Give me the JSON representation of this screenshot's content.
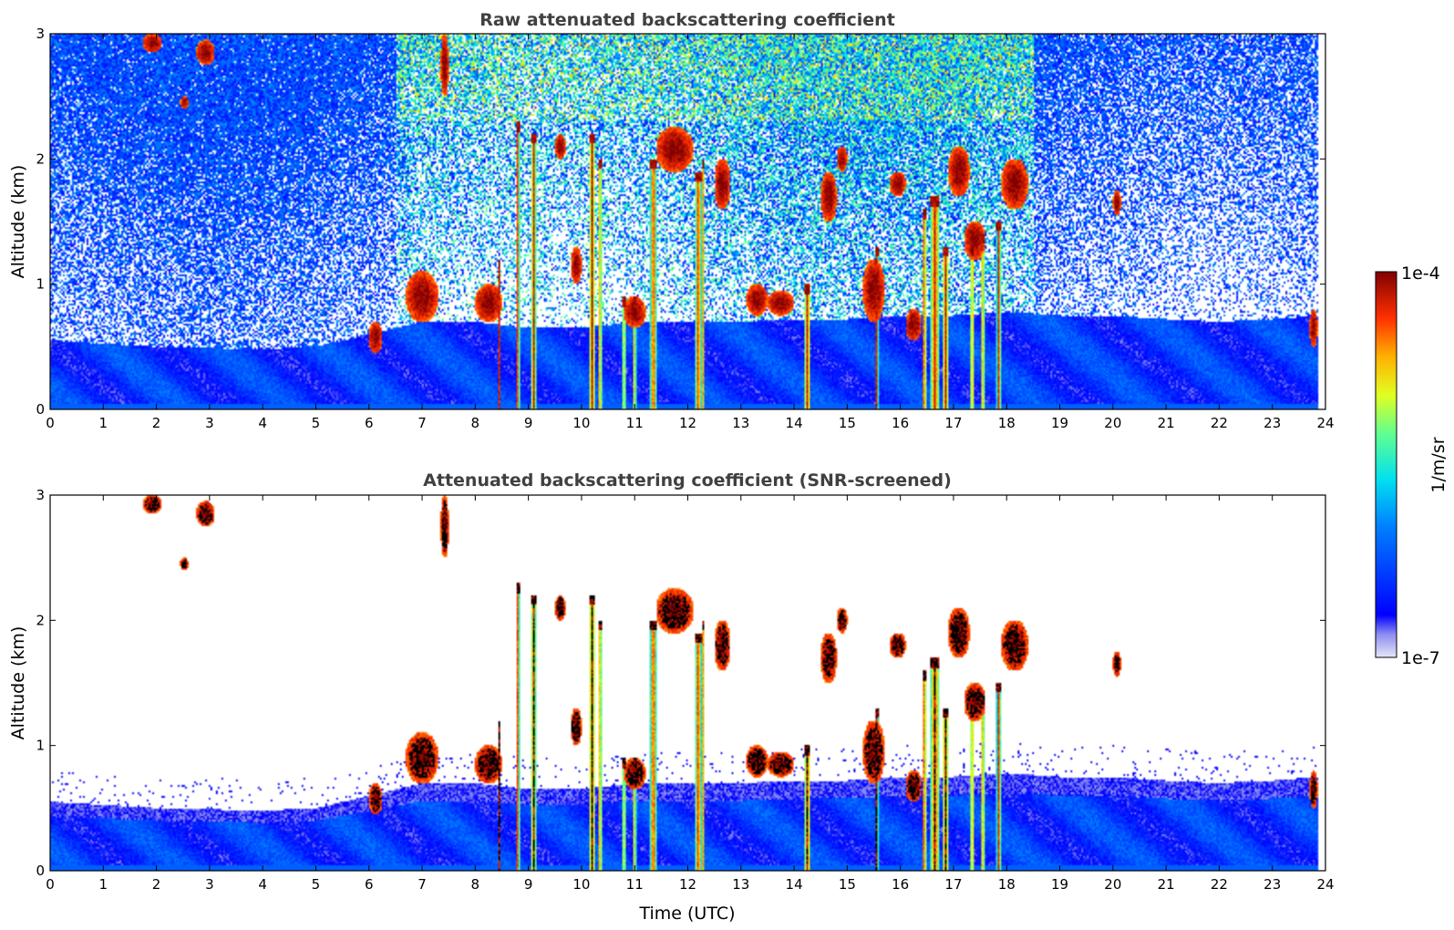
{
  "chart_data": [
    {
      "type": "heatmap",
      "title": "Raw attenuated backscattering coefficient",
      "xlabel": "",
      "ylabel": "Altitude (km)",
      "xlim": [
        0,
        24
      ],
      "ylim": [
        0,
        3
      ],
      "xticks": [
        0,
        1,
        2,
        3,
        4,
        5,
        6,
        7,
        8,
        9,
        10,
        11,
        12,
        13,
        14,
        15,
        16,
        17,
        18,
        19,
        20,
        21,
        22,
        23,
        24
      ],
      "yticks": [
        0,
        1,
        2,
        3
      ],
      "screening": "raw",
      "grid": false
    },
    {
      "type": "heatmap",
      "title": "Attenuated backscattering coefficient (SNR-screened)",
      "xlabel": "Time (UTC)",
      "ylabel": "Altitude (km)",
      "xlim": [
        0,
        24
      ],
      "ylim": [
        0,
        3
      ],
      "xticks": [
        0,
        1,
        2,
        3,
        4,
        5,
        6,
        7,
        8,
        9,
        10,
        11,
        12,
        13,
        14,
        15,
        16,
        17,
        18,
        19,
        20,
        21,
        22,
        23,
        24
      ],
      "yticks": [
        0,
        1,
        2,
        3
      ],
      "screening": "snr",
      "grid": false
    }
  ],
  "colorbar": {
    "label": "1/m/sr",
    "max_label": "1e-4",
    "min_label": "1e-7",
    "scale": "log",
    "range": [
      1e-07,
      0.0001
    ],
    "colormap": "jet"
  },
  "features": {
    "boundary_layer_top_km": [
      [
        0,
        0.55
      ],
      [
        2,
        0.5
      ],
      [
        4,
        0.48
      ],
      [
        5,
        0.5
      ],
      [
        6,
        0.6
      ],
      [
        7,
        0.7
      ],
      [
        8,
        0.7
      ],
      [
        9,
        0.65
      ],
      [
        10,
        0.65
      ],
      [
        11,
        0.7
      ],
      [
        12,
        0.7
      ],
      [
        13,
        0.7
      ],
      [
        14,
        0.72
      ],
      [
        15,
        0.72
      ],
      [
        16,
        0.75
      ],
      [
        17,
        0.75
      ],
      [
        18,
        0.78
      ],
      [
        19,
        0.75
      ],
      [
        20,
        0.75
      ],
      [
        21,
        0.72
      ],
      [
        22,
        0.7
      ],
      [
        23,
        0.72
      ],
      [
        23.85,
        0.75
      ]
    ],
    "data_end_time_utc": 23.85,
    "cloud_columns": [
      {
        "t": 8.45,
        "top": 1.2,
        "w": 0.05
      },
      {
        "t": 8.8,
        "top": 2.3,
        "w": 0.07
      },
      {
        "t": 9.1,
        "top": 2.2,
        "w": 0.1
      },
      {
        "t": 10.2,
        "top": 2.2,
        "w": 0.12
      },
      {
        "t": 10.35,
        "top": 2.0,
        "w": 0.06
      },
      {
        "t": 10.8,
        "top": 0.9,
        "w": 0.05
      },
      {
        "t": 11.0,
        "top": 0.9,
        "w": 0.05
      },
      {
        "t": 11.35,
        "top": 2.0,
        "w": 0.12
      },
      {
        "t": 12.2,
        "top": 1.9,
        "w": 0.12
      },
      {
        "t": 12.3,
        "top": 2.0,
        "w": 0.05
      },
      {
        "t": 14.25,
        "top": 1.0,
        "w": 0.12
      },
      {
        "t": 15.55,
        "top": 1.3,
        "w": 0.07
      },
      {
        "t": 16.45,
        "top": 1.6,
        "w": 0.08
      },
      {
        "t": 16.65,
        "top": 1.7,
        "w": 0.18
      },
      {
        "t": 16.85,
        "top": 1.3,
        "w": 0.12
      },
      {
        "t": 17.35,
        "top": 1.3,
        "w": 0.06
      },
      {
        "t": 17.55,
        "top": 1.4,
        "w": 0.06
      },
      {
        "t": 17.85,
        "top": 1.5,
        "w": 0.08
      }
    ],
    "cloud_patches": [
      {
        "t0": 1.75,
        "t1": 2.1,
        "z0": 2.85,
        "z1": 3.0
      },
      {
        "t0": 2.75,
        "t1": 3.1,
        "z0": 2.75,
        "z1": 2.95
      },
      {
        "t0": 2.45,
        "t1": 2.6,
        "z0": 2.4,
        "z1": 2.5
      },
      {
        "t0": 6.0,
        "t1": 6.25,
        "z0": 0.45,
        "z1": 0.7
      },
      {
        "t0": 6.7,
        "t1": 7.3,
        "z0": 0.7,
        "z1": 1.1
      },
      {
        "t0": 7.35,
        "t1": 7.5,
        "z0": 2.5,
        "z1": 3.0
      },
      {
        "t0": 8.0,
        "t1": 8.5,
        "z0": 0.7,
        "z1": 1.0
      },
      {
        "t0": 9.5,
        "t1": 9.7,
        "z0": 2.0,
        "z1": 2.2
      },
      {
        "t0": 9.8,
        "t1": 10.0,
        "z0": 1.0,
        "z1": 1.3
      },
      {
        "t0": 10.8,
        "t1": 11.2,
        "z0": 0.65,
        "z1": 0.9
      },
      {
        "t0": 11.4,
        "t1": 12.1,
        "z0": 1.9,
        "z1": 2.25
      },
      {
        "t0": 12.5,
        "t1": 12.8,
        "z0": 1.6,
        "z1": 2.0
      },
      {
        "t0": 13.1,
        "t1": 13.5,
        "z0": 0.75,
        "z1": 1.0
      },
      {
        "t0": 13.5,
        "t1": 14.0,
        "z0": 0.75,
        "z1": 0.95
      },
      {
        "t0": 14.5,
        "t1": 14.8,
        "z0": 1.5,
        "z1": 1.9
      },
      {
        "t0": 14.8,
        "t1": 15.0,
        "z0": 1.9,
        "z1": 2.1
      },
      {
        "t0": 15.3,
        "t1": 15.7,
        "z0": 0.7,
        "z1": 1.2
      },
      {
        "t0": 15.8,
        "t1": 16.1,
        "z0": 1.7,
        "z1": 1.9
      },
      {
        "t0": 16.1,
        "t1": 16.4,
        "z0": 0.55,
        "z1": 0.8
      },
      {
        "t0": 16.9,
        "t1": 17.3,
        "z0": 1.7,
        "z1": 2.1
      },
      {
        "t0": 17.2,
        "t1": 17.6,
        "z0": 1.2,
        "z1": 1.5
      },
      {
        "t0": 17.9,
        "t1": 18.4,
        "z0": 1.6,
        "z1": 2.0
      },
      {
        "t0": 20.0,
        "t1": 20.15,
        "z0": 1.55,
        "z1": 1.75
      },
      {
        "t0": 23.7,
        "t1": 23.85,
        "z0": 0.5,
        "z1": 0.8
      }
    ]
  }
}
